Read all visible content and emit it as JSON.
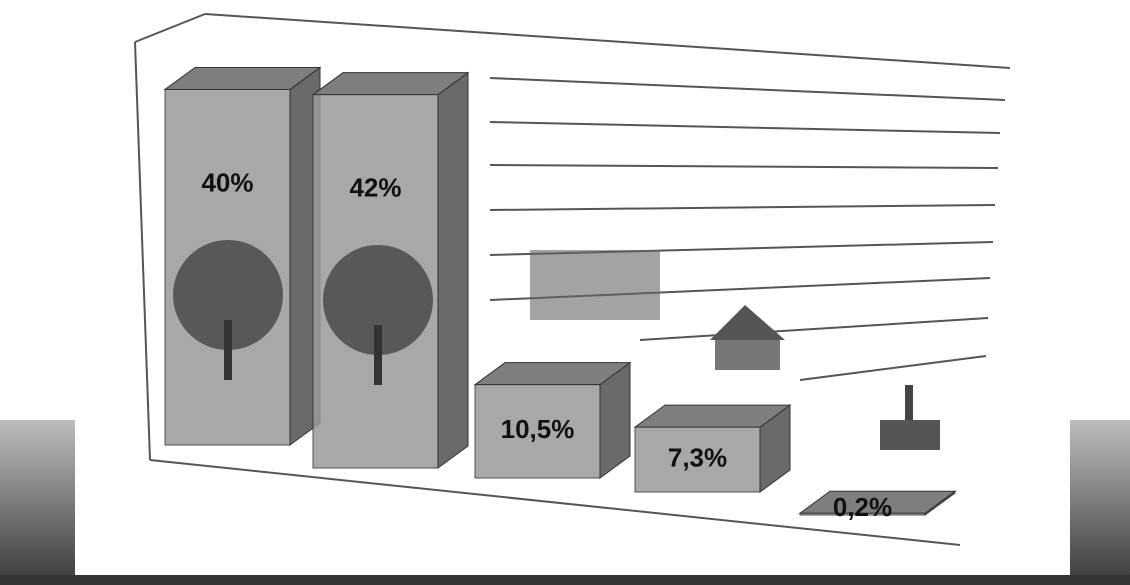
{
  "chart_data": {
    "type": "bar3d",
    "values": [
      40,
      42,
      10.5,
      7.3,
      0.2
    ],
    "value_labels": [
      "40%",
      "42%",
      "10,5%",
      "7,3%",
      "0,2%"
    ],
    "color": "#9a9a9a",
    "ylim": [
      0,
      45
    ]
  }
}
